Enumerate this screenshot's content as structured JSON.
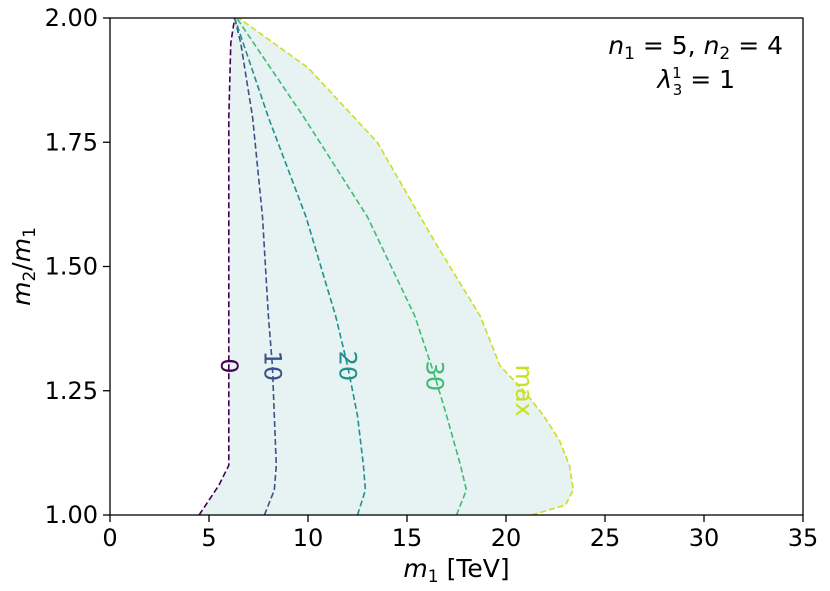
{
  "chart_data": {
    "type": "line",
    "xlabel_var": "m",
    "xlabel_sub": "1",
    "xlabel_unit": "[TeV]",
    "ylabel_num": "m",
    "ylabel_num_sub": "2",
    "ylabel_den": "m",
    "ylabel_den_sub": "1",
    "xlim": [
      0,
      35
    ],
    "ylim": [
      1.0,
      2.0
    ],
    "xticks": [
      0,
      5,
      10,
      15,
      20,
      25,
      30,
      35
    ],
    "xtick_labels": [
      "0",
      "5",
      "10",
      "15",
      "20",
      "25",
      "30",
      "35"
    ],
    "yticks": [
      1.0,
      1.25,
      1.5,
      1.75,
      2.0
    ],
    "ytick_labels": [
      "1.00",
      "1.25",
      "1.50",
      "1.75",
      "2.00"
    ],
    "grid": false,
    "fill_color": "#e6f3f2",
    "annotation": {
      "line1_a_var": "n",
      "line1_a_sub": "1",
      "line1_a_val": " = 5, ",
      "line1_b_var": "n",
      "line1_b_sub": "2",
      "line1_b_val": " = 4",
      "line2_var": "λ",
      "line2_sub": "3",
      "line2_sup": "1",
      "line2_val": " = 1"
    },
    "series": [
      {
        "name": "0",
        "color": "#440154",
        "x": [
          4.5,
          5.0,
          5.5,
          6.0,
          6.0,
          6.0,
          6.0,
          6.0,
          6.0,
          6.1,
          6.3
        ],
        "y": [
          1.0,
          1.03,
          1.06,
          1.1,
          1.2,
          1.3,
          1.4,
          1.6,
          1.8,
          1.95,
          2.0
        ],
        "label_at": [
          6.0,
          1.3
        ]
      },
      {
        "name": "10",
        "color": "#3b518b",
        "x": [
          7.8,
          8.3,
          8.4,
          8.3,
          8.2,
          8.0,
          7.7,
          7.2,
          6.6,
          6.3
        ],
        "y": [
          1.0,
          1.05,
          1.1,
          1.2,
          1.3,
          1.4,
          1.6,
          1.8,
          1.95,
          2.0
        ],
        "label_at": [
          8.2,
          1.3
        ]
      },
      {
        "name": "20",
        "color": "#21908c",
        "x": [
          12.5,
          12.9,
          12.8,
          12.5,
          12.0,
          11.4,
          9.9,
          8.0,
          6.3
        ],
        "y": [
          1.0,
          1.05,
          1.1,
          1.2,
          1.3,
          1.4,
          1.6,
          1.8,
          2.0
        ],
        "label_at": [
          12.0,
          1.3
        ]
      },
      {
        "name": "30",
        "color": "#3dbc74",
        "x": [
          17.5,
          18.0,
          17.7,
          17.0,
          16.4,
          15.4,
          13.0,
          9.8,
          6.4
        ],
        "y": [
          1.0,
          1.05,
          1.1,
          1.2,
          1.28,
          1.4,
          1.6,
          1.8,
          2.0
        ],
        "label_at": [
          16.4,
          1.28
        ]
      },
      {
        "name": "max",
        "color": "#c8e020",
        "x": [
          21.3,
          23.0,
          23.4,
          23.2,
          22.7,
          21.9,
          20.9,
          19.7,
          18.7,
          16.4,
          13.5,
          10.0,
          6.5
        ],
        "y": [
          1.0,
          1.02,
          1.05,
          1.1,
          1.15,
          1.2,
          1.25,
          1.3,
          1.4,
          1.55,
          1.75,
          1.9,
          2.0
        ],
        "label_at": [
          20.9,
          1.25
        ]
      }
    ]
  }
}
